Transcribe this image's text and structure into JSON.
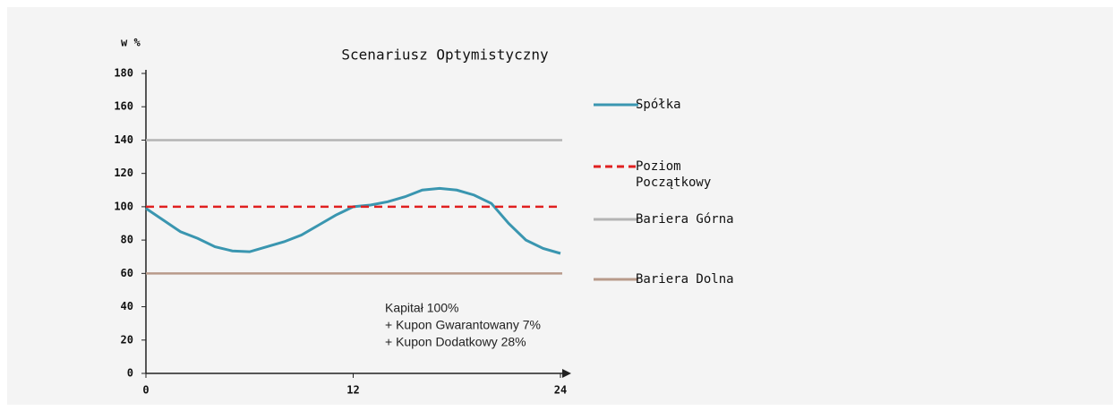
{
  "chart_data": {
    "type": "line",
    "title": "Scenariusz Optymistyczny",
    "ylabel": "w %",
    "x": [
      0,
      1,
      2,
      3,
      4,
      5,
      6,
      7,
      8,
      9,
      10,
      11,
      12,
      13,
      14,
      15,
      16,
      17,
      18,
      19,
      20,
      21,
      22,
      23,
      24
    ],
    "xlim": [
      0,
      24
    ],
    "xticks": [
      0,
      12,
      24
    ],
    "ylim": [
      0,
      180
    ],
    "yticks": [
      0,
      20,
      40,
      60,
      80,
      100,
      120,
      140,
      160,
      180
    ],
    "series": [
      {
        "name": "Spółka",
        "color": "#3a96b0",
        "values": [
          99,
          92,
          85,
          81,
          76,
          73.5,
          73,
          76,
          79,
          83,
          89,
          95,
          100,
          101,
          103,
          106,
          110,
          111,
          110,
          107,
          102,
          90,
          80,
          75,
          72
        ]
      },
      {
        "name": "Poziom Początkowy",
        "color": "#e02020",
        "dashed": true,
        "value": 100
      },
      {
        "name": "Bariera Górna",
        "color": "#b4b4b4",
        "value": 140
      },
      {
        "name": "Bariera Dolna",
        "color": "#b89a8a",
        "value": 60
      }
    ],
    "annotations": [
      "Kapitał 100%",
      "+ Kupon Gwarantowany 7%",
      "+ Kupon Dodatkowy 28%"
    ]
  }
}
